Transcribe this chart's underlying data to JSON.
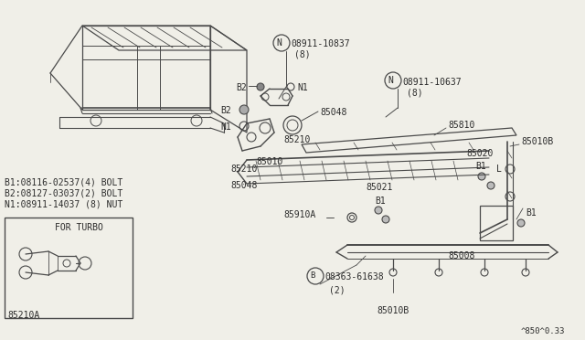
{
  "bg_color": "#f0efe8",
  "line_color": "#4a4a4a",
  "text_color": "#2a2a2a",
  "figure_code": "^850^0.33",
  "legend": [
    "B1:08116-02537(4) BOLT",
    "B2:08127-03037(2) BOLT",
    "N1:08911-14037 (8) NUT"
  ],
  "turbo_label": "FOR TURBO",
  "turbo_part": "85210A"
}
